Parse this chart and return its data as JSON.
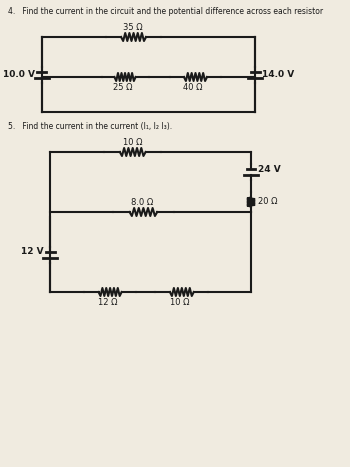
{
  "bg_color": "#f0ebe0",
  "line_color": "#1a1a1a",
  "text_color": "#1a1a1a",
  "q4_title": "4.   Find the current in the circuit and the potential difference across each resistor",
  "q5_title": "5.   Find the current in the current (I₁, I₂ I₃).",
  "circuit1": {
    "left_voltage": "10.0 V",
    "right_voltage": "14.0 V",
    "top_resistor": "35 Ω",
    "bottom_left_resistor": "25 Ω",
    "bottom_right_resistor": "40 Ω"
  },
  "circuit2": {
    "top_resistor": "10 Ω",
    "middle_resistor": "8.0 Ω",
    "right_resistor": "20 Ω",
    "bottom_left_resistor": "12 Ω",
    "bottom_right_resistor": "10 Ω",
    "left_voltage": "12 V",
    "right_voltage": "24 V"
  }
}
